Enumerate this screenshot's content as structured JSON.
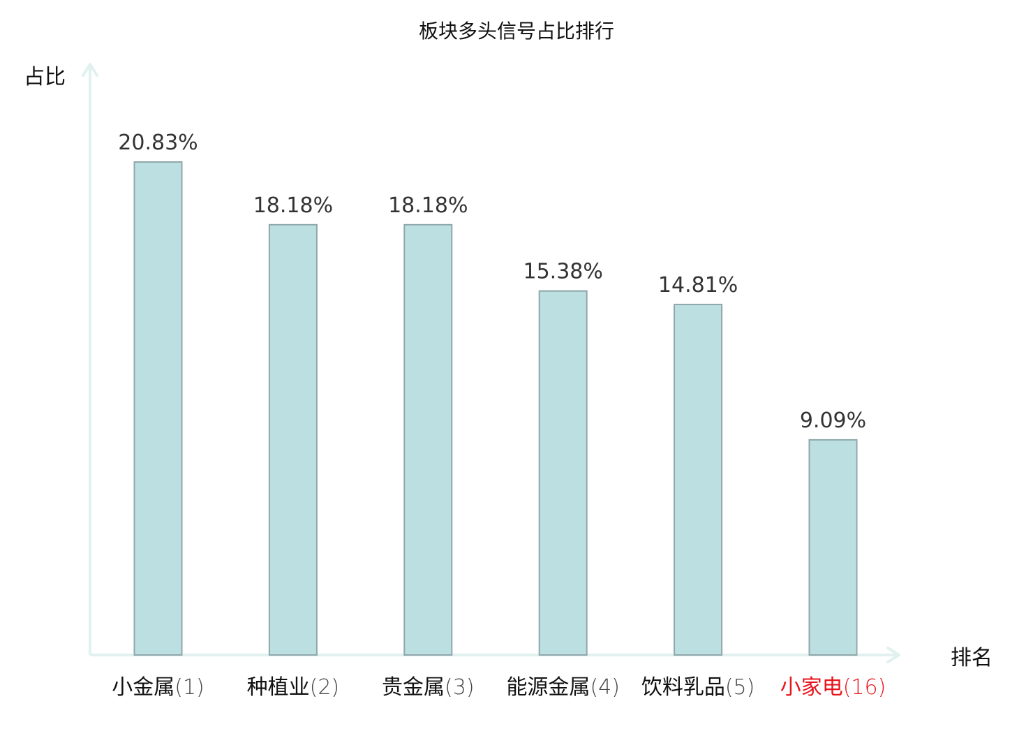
{
  "colors": {
    "bar_fill": "#bce0e2",
    "bar_stroke": "#8fa7aa",
    "axis": "#e0f1ef",
    "value_label": "#333333",
    "category_label": "#111111",
    "highlight_label": "#e8141b",
    "title": "#111111"
  },
  "chart_data": {
    "type": "bar",
    "title": "板块多头信号占比排行",
    "xlabel": "排名",
    "ylabel": "占比",
    "categories": [
      {
        "name": "小金属",
        "rank": "(1)",
        "highlight": false
      },
      {
        "name": "种植业",
        "rank": "(2)",
        "highlight": false
      },
      {
        "name": "贵金属",
        "rank": "(3)",
        "highlight": false
      },
      {
        "name": "能源金属",
        "rank": "(4)",
        "highlight": false
      },
      {
        "name": "饮料乳品",
        "rank": "(5)",
        "highlight": false
      },
      {
        "name": "小家电",
        "rank": "(16)",
        "highlight": true
      }
    ],
    "values": [
      20.83,
      18.18,
      18.18,
      15.38,
      14.81,
      9.09
    ],
    "value_labels": [
      "20.83%",
      "18.18%",
      "18.18%",
      "15.38%",
      "14.81%",
      "9.09%"
    ],
    "unit": "%",
    "ylim": [
      0,
      25
    ],
    "grid": false,
    "legend": "none"
  }
}
